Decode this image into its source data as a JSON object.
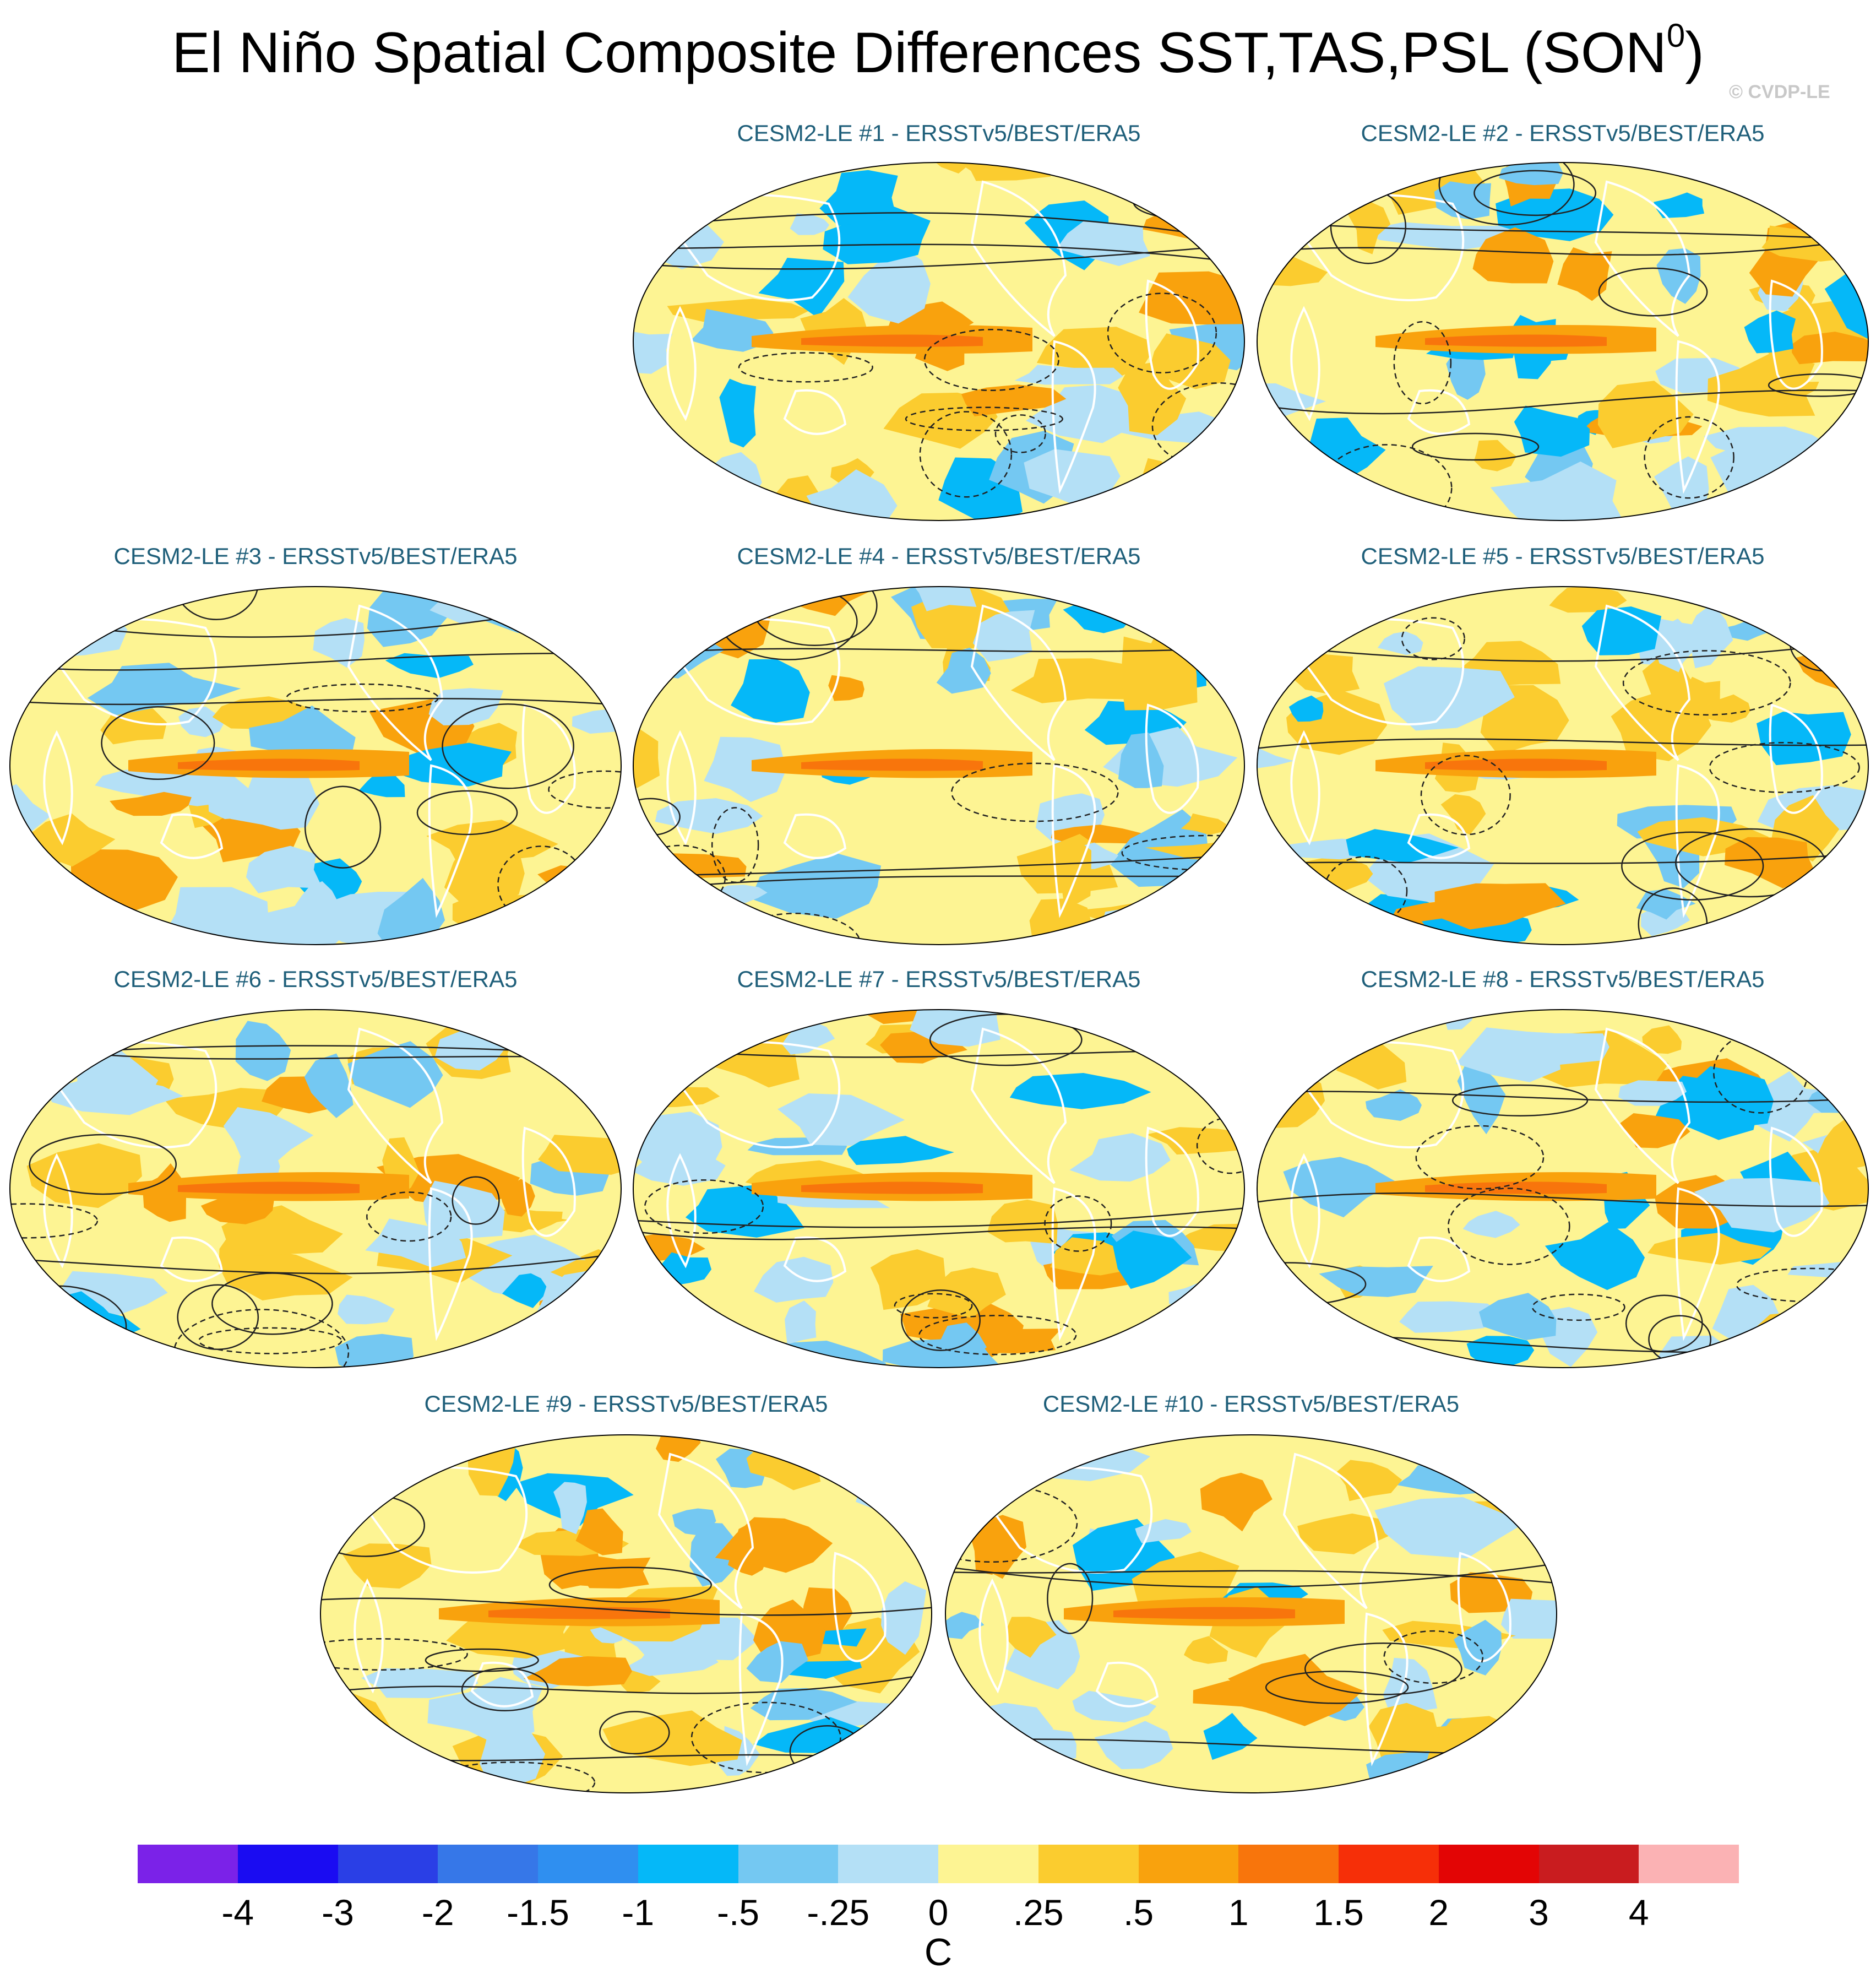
{
  "title_main": "El Niño Spatial Composite Differences SST,TAS,PSL (SON",
  "title_sup": "0",
  "title_end": ")",
  "copyright": "© CVDP-LE",
  "chart_data": {
    "type": "map-composite",
    "projection": "Robinson (Pacific-centered)",
    "fields": [
      "SST",
      "TAS",
      "PSL"
    ],
    "season": "SON0",
    "shading": "SST/TAS difference (C)",
    "contours": "PSL difference (solid positive, dashed negative)",
    "panels": [
      {
        "label": "CESM2-LE #1 - ERSSTv5/BEST/ERA5"
      },
      {
        "label": "CESM2-LE #2 - ERSSTv5/BEST/ERA5"
      },
      {
        "label": "CESM2-LE #3 - ERSSTv5/BEST/ERA5"
      },
      {
        "label": "CESM2-LE #4 - ERSSTv5/BEST/ERA5"
      },
      {
        "label": "CESM2-LE #5 - ERSSTv5/BEST/ERA5"
      },
      {
        "label": "CESM2-LE #6 - ERSSTv5/BEST/ERA5"
      },
      {
        "label": "CESM2-LE #7 - ERSSTv5/BEST/ERA5"
      },
      {
        "label": "CESM2-LE #8 - ERSSTv5/BEST/ERA5"
      },
      {
        "label": "CESM2-LE #9 - ERSSTv5/BEST/ERA5"
      },
      {
        "label": "CESM2-LE #10 - ERSSTv5/BEST/ERA5"
      }
    ],
    "colorbar": {
      "levels": [
        "-4",
        "-3",
        "-2",
        "-1.5",
        "-1",
        "-.5",
        "-.25",
        "0",
        ".25",
        ".5",
        "1",
        "1.5",
        "2",
        "3",
        "4"
      ],
      "colors": [
        "#7b22e8",
        "#1a0cf2",
        "#2a3fe6",
        "#3677e8",
        "#2f8ff0",
        "#05b8f8",
        "#74c8f2",
        "#b4e0f6",
        "#fdf493",
        "#fbcc2f",
        "#f9a20d",
        "#f8750c",
        "#f62f08",
        "#e30505",
        "#c91c1f",
        "#fbb2b4"
      ],
      "units": "C"
    }
  }
}
